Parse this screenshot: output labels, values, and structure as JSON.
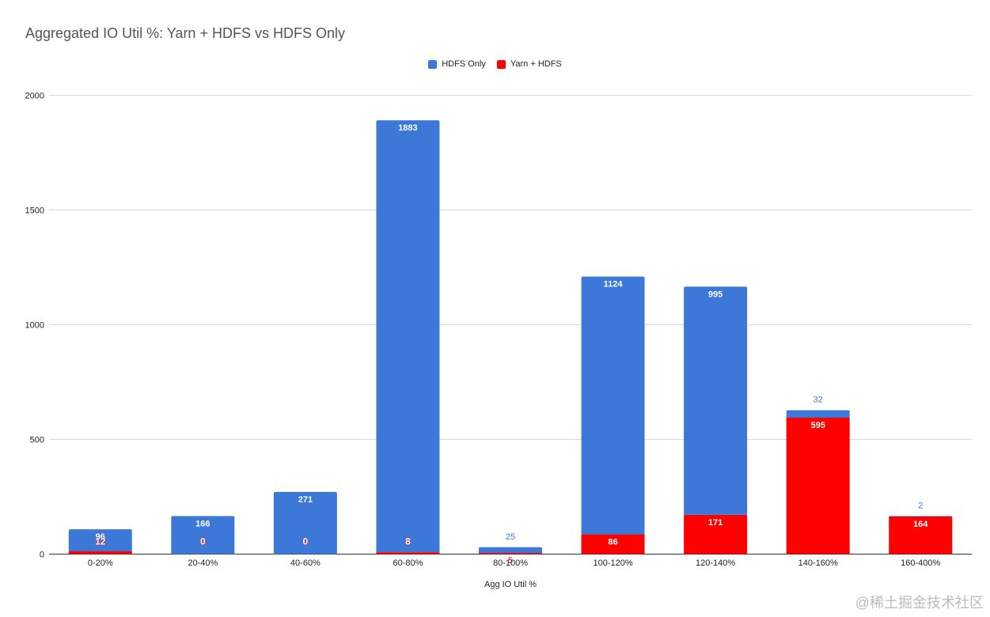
{
  "chart_data": {
    "type": "bar",
    "stacked": true,
    "title": "Aggregated IO Util %: Yarn + HDFS vs HDFS  Only",
    "xlabel": "Agg IO Util %",
    "ylabel": "",
    "ylim": [
      0,
      2000
    ],
    "yticks": [
      0,
      500,
      1000,
      1500,
      2000
    ],
    "grid": true,
    "legend_position": "top",
    "categories": [
      "0-20%",
      "20-40%",
      "40-60%",
      "60-80%",
      "80-100%",
      "100-120%",
      "120-140%",
      "140-160%",
      "160-400%"
    ],
    "series": [
      {
        "name": "Yarn + HDFS",
        "color": "#ff0000",
        "values": [
          12,
          0,
          0,
          8,
          5,
          86,
          171,
          595,
          164
        ]
      },
      {
        "name": "HDFS  Only",
        "color": "#3c78d8",
        "values": [
          96,
          166,
          271,
          1883,
          25,
          1124,
          995,
          32,
          2
        ]
      }
    ]
  },
  "watermark": "@稀土掘金技术社区"
}
